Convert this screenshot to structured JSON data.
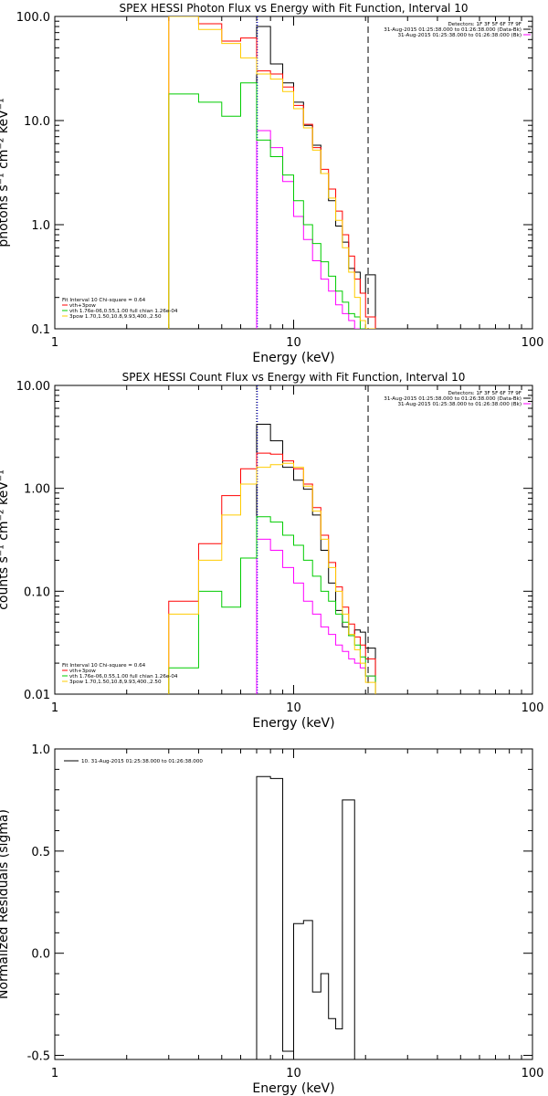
{
  "chart_data": [
    {
      "type": "line",
      "title": "SPEX HESSI Photon Flux vs Energy with Fit Function, Interval 10",
      "xlabel": "Energy (keV)",
      "ylabel": "photons s⁻¹ cm⁻² keV⁻¹",
      "xscale": "log",
      "yscale": "log",
      "xlim": [
        1,
        100
      ],
      "ylim": [
        0.1,
        100
      ],
      "x_ticks": [
        1,
        10,
        100
      ],
      "x_tick_labels": [
        "1",
        "10",
        "100"
      ],
      "y_ticks": [
        0.1,
        1,
        10,
        100
      ],
      "y_tick_labels": [
        "0.1",
        "1.0",
        "10.0",
        "100.0"
      ],
      "info_lines": [
        "Detectors: 1F 3F 5F 6F 7F 9F",
        "31-Aug-2015 01:25:38.000 to 01:26:38.000 (Data-Bk)",
        "31-Aug-2015 01:25:38.000 to 01:26:38.000 (Bk)"
      ],
      "fit_lines": [
        "Fit Interval 10    Chi-square = 0.64",
        "vth+3pow",
        "vth 1.76e-06,0.55,1.00  full chian 1.26e-04",
        "3pow 1.70,1.50,10.8,9.93,400.,2.50"
      ],
      "vlines": [
        {
          "x": 7.0,
          "style": "dotted",
          "color": "#000000"
        },
        {
          "x": 7.05,
          "style": "dotted",
          "color": "#0000ff"
        },
        {
          "x": 20.5,
          "style": "dashed",
          "color": "#000000"
        }
      ],
      "edges": [
        3,
        4,
        5,
        6,
        7,
        8,
        9,
        10,
        11,
        12,
        13,
        14,
        15,
        16,
        17,
        18,
        19,
        20,
        22
      ],
      "series": [
        {
          "name": "Data-Bk",
          "color": "#000000",
          "values": [
            null,
            null,
            null,
            null,
            80,
            35,
            23,
            15,
            9,
            5.8,
            3.1,
            1.7,
            0.97,
            0.68,
            0.38,
            0.35,
            0.22,
            0.33,
            0.1
          ]
        },
        {
          "name": "Bk",
          "color": "#ff00ff",
          "values": [
            null,
            null,
            null,
            null,
            8,
            5.5,
            2.6,
            1.2,
            0.72,
            0.45,
            0.3,
            0.23,
            0.17,
            0.14,
            0.12,
            0.1,
            0.1,
            0.1,
            null
          ]
        },
        {
          "name": "vth+3pow",
          "color": "#ff0000",
          "values": [
            102,
            85,
            58,
            62,
            30,
            28,
            21,
            14,
            9.2,
            5.5,
            3.4,
            2.2,
            1.35,
            0.8,
            0.5,
            0.3,
            0.22,
            0.13,
            0.1
          ]
        },
        {
          "name": "vth",
          "color": "#00cc00",
          "values": [
            18,
            15,
            11,
            23,
            6.5,
            4.5,
            3,
            1.7,
            1,
            0.66,
            0.44,
            0.32,
            0.23,
            0.18,
            0.14,
            0.13,
            0.1,
            0.1,
            null
          ]
        },
        {
          "name": "3pow",
          "color": "#ffcc00",
          "values": [
            100,
            75,
            55,
            40,
            28,
            25,
            19,
            13,
            8.5,
            5.2,
            3.1,
            1.8,
            1.1,
            0.6,
            0.35,
            0.2,
            0.12,
            0.1,
            null
          ]
        }
      ]
    },
    {
      "type": "line",
      "title": "SPEX HESSI Count Flux vs Energy with Fit Function, Interval 10",
      "xlabel": "Energy (keV)",
      "ylabel": "counts s⁻¹ cm⁻² keV⁻¹",
      "xscale": "log",
      "yscale": "log",
      "xlim": [
        1,
        100
      ],
      "ylim": [
        0.01,
        10
      ],
      "x_ticks": [
        1,
        10,
        100
      ],
      "x_tick_labels": [
        "1",
        "10",
        "100"
      ],
      "y_ticks": [
        0.01,
        0.1,
        1,
        10
      ],
      "y_tick_labels": [
        "0.01",
        "0.10",
        "1.00",
        "10.00"
      ],
      "info_lines": [
        "Detectors: 1F 3F 5F 6F 7F 9F",
        "31-Aug-2015 01:25:38.000 to 01:26:38.000 (Data-Bk)",
        "31-Aug-2015 01:25:38.000 to 01:26:38.000 (Bk)"
      ],
      "fit_lines": [
        "Fit Interval 10    Chi-square = 0.64",
        "vth+3pow",
        "vth 1.76e-06,0.55,1.00  full chian 1.26e-04",
        "3pow 1.70,1.50,10.8,9.93,400.,2.50"
      ],
      "vlines": [
        {
          "x": 7.0,
          "style": "dotted",
          "color": "#000000"
        },
        {
          "x": 7.05,
          "style": "dotted",
          "color": "#0000ff"
        },
        {
          "x": 20.5,
          "style": "dashed",
          "color": "#000000"
        }
      ],
      "edges": [
        3,
        4,
        5,
        6,
        7,
        8,
        9,
        10,
        11,
        12,
        13,
        14,
        15,
        16,
        17,
        18,
        19,
        20,
        22
      ],
      "series": [
        {
          "name": "Data-Bk",
          "color": "#000000",
          "values": [
            null,
            null,
            null,
            null,
            4.2,
            2.9,
            1.6,
            1.2,
            0.98,
            0.55,
            0.25,
            0.12,
            0.065,
            0.045,
            0.037,
            0.042,
            0.04,
            0.028,
            0.01
          ]
        },
        {
          "name": "Bk",
          "color": "#ff00ff",
          "values": [
            null,
            null,
            null,
            null,
            0.32,
            0.25,
            0.17,
            0.12,
            0.08,
            0.06,
            0.045,
            0.038,
            0.03,
            0.026,
            0.022,
            0.02,
            0.018,
            0.015,
            null
          ]
        },
        {
          "name": "vth+3pow",
          "color": "#ff0000",
          "values": [
            0.08,
            0.29,
            0.85,
            1.55,
            2.2,
            2.15,
            1.85,
            1.55,
            1.1,
            0.65,
            0.35,
            0.19,
            0.11,
            0.07,
            0.048,
            0.036,
            0.03,
            0.022,
            0.01
          ]
        },
        {
          "name": "vth",
          "color": "#00cc00",
          "values": [
            0.018,
            0.1,
            0.07,
            0.21,
            0.53,
            0.47,
            0.35,
            0.28,
            0.2,
            0.14,
            0.1,
            0.08,
            0.06,
            0.05,
            0.037,
            0.03,
            0.023,
            0.015,
            0.01
          ]
        },
        {
          "name": "3pow",
          "color": "#ffcc00",
          "values": [
            0.06,
            0.2,
            0.55,
            1.1,
            1.6,
            1.7,
            1.75,
            1.6,
            1.05,
            0.6,
            0.32,
            0.17,
            0.1,
            0.06,
            0.038,
            0.027,
            0.02,
            0.013,
            null
          ]
        }
      ]
    },
    {
      "type": "line",
      "title": "",
      "xlabel": "Energy (keV)",
      "ylabel": "Normalized Residuals (sigma)",
      "xscale": "log",
      "yscale": "linear",
      "xlim": [
        1,
        100
      ],
      "ylim": [
        -0.52,
        1.0
      ],
      "x_ticks": [
        1,
        10,
        100
      ],
      "x_tick_labels": [
        "1",
        "10",
        "100"
      ],
      "y_ticks": [
        -0.5,
        0,
        0.5,
        1
      ],
      "y_tick_labels": [
        "-0.5",
        "0.0",
        "0.5",
        "1.0"
      ],
      "legend": [
        "10. 31-Aug-2015 01:25:38.000 to 01:26:38.000"
      ],
      "edges": [
        7,
        8,
        9,
        10,
        11,
        12,
        13,
        14,
        15,
        16,
        18,
        20
      ],
      "series": [
        {
          "name": "10. 31-Aug-2015 01:25:38.000 to 01:26:38.000",
          "color": "#000000",
          "values": [
            0.865,
            0.855,
            -0.48,
            0.145,
            0.16,
            -0.19,
            -0.1,
            -0.32,
            -0.37,
            0.75,
            null
          ]
        }
      ]
    }
  ]
}
